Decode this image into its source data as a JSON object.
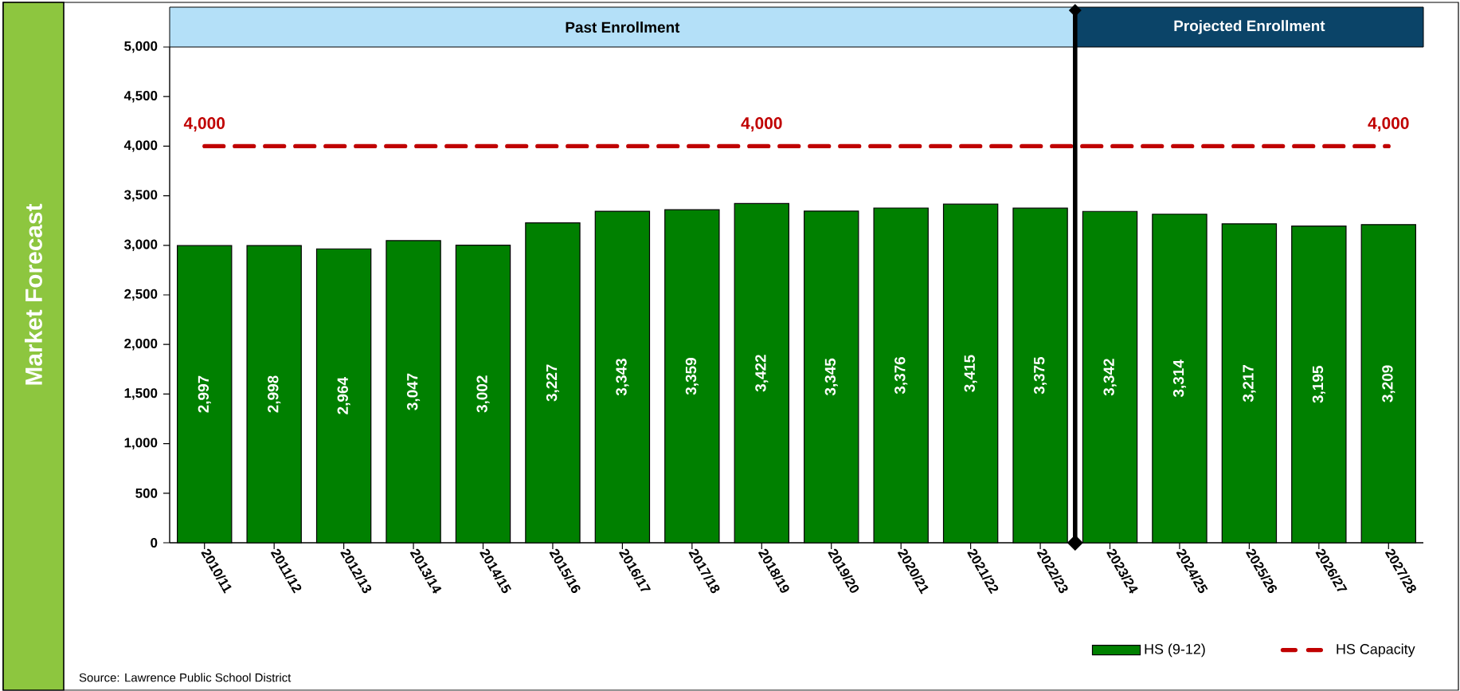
{
  "chart_data": {
    "type": "bar",
    "ylabel": "Market Forecast",
    "categories": [
      "2010/11",
      "2011/12",
      "2012/13",
      "2013/14",
      "2014/15",
      "2015/16",
      "2016/17",
      "2017/18",
      "2018/19",
      "2019/20",
      "2020/21",
      "2021/22",
      "2022/23",
      "2023/24",
      "2024/25",
      "2025/26",
      "2026/27",
      "2027/28"
    ],
    "series": [
      {
        "name": "HS (9-12)",
        "color": "#008000",
        "values": [
          2997,
          2998,
          2964,
          3047,
          3002,
          3227,
          3343,
          3359,
          3422,
          3345,
          3376,
          3415,
          3375,
          3342,
          3314,
          3217,
          3195,
          3209
        ],
        "value_labels": [
          "2,997",
          "2,998",
          "2,964",
          "3,047",
          "3,002",
          "3,227",
          "3,343",
          "3,359",
          "3,422",
          "3,345",
          "3,376",
          "3,415",
          "3,375",
          "3,342",
          "3,314",
          "3,217",
          "3,195",
          "3,209"
        ]
      },
      {
        "name": "HS Capacity",
        "type": "line",
        "line_style": "dashed",
        "color": "#c00000",
        "values": [
          4000,
          4000,
          4000,
          4000,
          4000,
          4000,
          4000,
          4000,
          4000,
          4000,
          4000,
          4000,
          4000,
          4000,
          4000,
          4000,
          4000,
          4000
        ],
        "value_labels": [
          "4,000",
          null,
          null,
          null,
          null,
          null,
          null,
          null,
          "4,000",
          null,
          null,
          null,
          null,
          null,
          null,
          null,
          null,
          "4,000"
        ]
      }
    ],
    "ylim": [
      0,
      5000
    ],
    "yticks": [
      {
        "value": 0,
        "label": "0"
      },
      {
        "value": 500,
        "label": "500"
      },
      {
        "value": 1000,
        "label": "1,000"
      },
      {
        "value": 1500,
        "label": "1,500"
      },
      {
        "value": 2000,
        "label": "2,000"
      },
      {
        "value": 2500,
        "label": "2,500"
      },
      {
        "value": 3000,
        "label": "3,000"
      },
      {
        "value": 3500,
        "label": "3,500"
      },
      {
        "value": 4000,
        "label": "4,000"
      },
      {
        "value": 4500,
        "label": "4,500"
      },
      {
        "value": 5000,
        "label": "5,000"
      }
    ],
    "legend": "bottom right",
    "marker": "none",
    "grid": false,
    "annotations": [
      "Past Enrollment",
      "Projected Enrollment",
      "Source:  Lawrence Public School District"
    ]
  }
}
